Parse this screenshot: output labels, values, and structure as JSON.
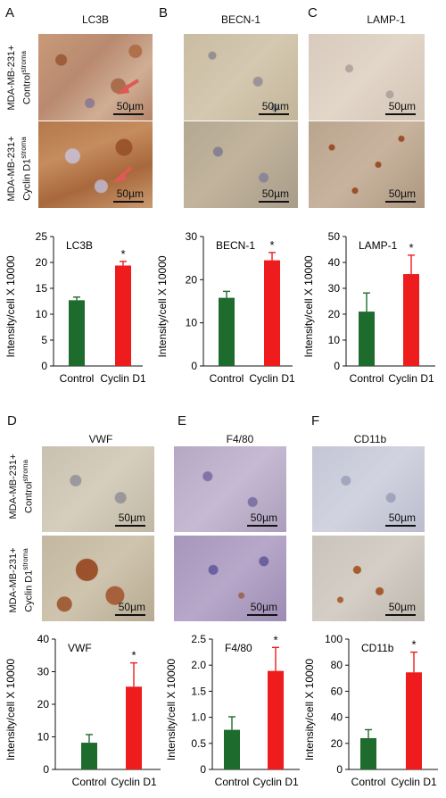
{
  "figure": {
    "panels": [
      {
        "letter": "A",
        "title": "LC3B",
        "scale_bar": "50µm"
      },
      {
        "letter": "B",
        "title": "BECN-1",
        "scale_bar": "50µm"
      },
      {
        "letter": "C",
        "title": "LAMP-1",
        "scale_bar": "50µm"
      },
      {
        "letter": "D",
        "title": "VWF",
        "scale_bar": "50µm"
      },
      {
        "letter": "E",
        "title": "F4/80",
        "scale_bar": "50µm"
      },
      {
        "letter": "F",
        "title": "CD11b",
        "scale_bar": "50µm"
      }
    ],
    "row_labels": {
      "control_line1": "MDA-MB-231+",
      "control_line2": "Control",
      "control_sup": "stroma",
      "cyclin_line1": "MDA-MB-231+",
      "cyclin_line2": "Cyclin D1",
      "cyclin_sup": "stroma"
    }
  },
  "colors": {
    "control": "#1d6b2d",
    "cyclin": "#ee1c1c"
  },
  "chart_data": [
    {
      "type": "bar",
      "title": "LC3B",
      "categories": [
        "Control",
        "Cyclin D1"
      ],
      "values": [
        12.7,
        19.4
      ],
      "errors": [
        0.6,
        0.8
      ],
      "significance": [
        "",
        "*"
      ],
      "ylabel": "Intensity/cell X 10000",
      "ylim": [
        0,
        25
      ],
      "yticks": [
        "0",
        "5",
        "10",
        "15",
        "20",
        "25"
      ]
    },
    {
      "type": "bar",
      "title": "BECN-1",
      "categories": [
        "Control",
        "Cyclin D1"
      ],
      "values": [
        15.8,
        24.5
      ],
      "errors": [
        1.5,
        1.8
      ],
      "significance": [
        "",
        "*"
      ],
      "ylabel": "Intensity/cell X 10000",
      "ylim": [
        0,
        30
      ],
      "yticks": [
        "0",
        "10",
        "20",
        "30"
      ]
    },
    {
      "type": "bar",
      "title": "LAMP-1",
      "categories": [
        "Control",
        "Cyclin D1"
      ],
      "values": [
        21,
        35.5
      ],
      "errors": [
        7.2,
        7.3
      ],
      "significance": [
        "",
        "*"
      ],
      "ylabel": "Intensity/cell X 10000",
      "ylim": [
        0,
        50
      ],
      "yticks": [
        "0",
        "10",
        "20",
        "30",
        "40",
        "50"
      ]
    },
    {
      "type": "bar",
      "title": "VWF",
      "categories": [
        "Control",
        "Cyclin D1"
      ],
      "values": [
        8.2,
        25.4
      ],
      "errors": [
        2.5,
        7.3
      ],
      "significance": [
        "",
        "*"
      ],
      "ylabel": "Intensity/cell X 10000",
      "ylim": [
        0,
        40
      ],
      "yticks": [
        "0",
        "10",
        "20",
        "30",
        "40"
      ]
    },
    {
      "type": "bar",
      "title": "F4/80",
      "categories": [
        "Control",
        "Cyclin D1"
      ],
      "values": [
        0.76,
        1.89
      ],
      "errors": [
        0.25,
        0.45
      ],
      "significance": [
        "",
        "*"
      ],
      "ylabel": "Intensity/cell X 10000",
      "ylim": [
        0,
        2.5
      ],
      "yticks": [
        "0",
        "0.5",
        "1.0",
        "1.5",
        "2.0",
        "2.5"
      ]
    },
    {
      "type": "bar",
      "title": "CD11b",
      "categories": [
        "Control",
        "Cyclin D1"
      ],
      "values": [
        24,
        74.5
      ],
      "errors": [
        6.5,
        15.5
      ],
      "significance": [
        "",
        "*"
      ],
      "ylabel": "Intensity/cell X 10000",
      "ylim": [
        0,
        100
      ],
      "yticks": [
        "0",
        "20",
        "40",
        "60",
        "80",
        "100"
      ]
    }
  ]
}
